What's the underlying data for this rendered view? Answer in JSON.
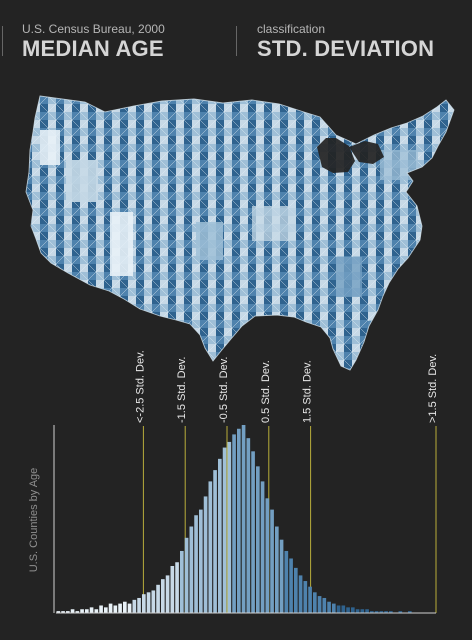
{
  "header": {
    "left_subtitle": "U.S. Census Bureau, 2000",
    "left_title": "MEDIAN AGE",
    "right_subtitle": "classification",
    "right_title": "STD. DEVIATION"
  },
  "colors": {
    "background": "#232323",
    "accent_lines": "#b8ad3a",
    "axis": "#d0d0d0",
    "blue_shades": [
      "#e8f1f7",
      "#c7d9e7",
      "#9fbfd7",
      "#739fc2",
      "#4e82ad",
      "#2f638f"
    ]
  },
  "chart_data": {
    "type": "bar",
    "ylabel": "U.S. Counties by Age",
    "xlim": [
      0,
      100
    ],
    "ylim": [
      0,
      100
    ],
    "thresholds": [
      {
        "label": "<-2.5 Std. Dev.",
        "x": 23
      },
      {
        "label": "-1.5 Std. Dev.",
        "x": 34
      },
      {
        "label": "-0.5 Std. Dev.",
        "x": 45
      },
      {
        "label": "0.5 Std. Dev.",
        "x": 56
      },
      {
        "label": "1.5 Std. Dev.",
        "x": 67
      },
      {
        "label": ">1.5 Std. Dev.",
        "x": 100
      }
    ],
    "values": [
      1,
      1,
      1,
      2,
      1,
      2,
      2,
      3,
      2,
      4,
      3,
      5,
      4,
      5,
      6,
      5,
      7,
      8,
      10,
      11,
      12,
      15,
      18,
      20,
      25,
      27,
      33,
      40,
      46,
      52,
      55,
      62,
      70,
      76,
      82,
      88,
      91,
      95,
      98,
      100,
      93,
      86,
      78,
      70,
      61,
      55,
      46,
      39,
      33,
      29,
      24,
      20,
      17,
      14,
      11,
      9,
      8,
      6,
      5,
      4,
      4,
      3,
      3,
      2,
      2,
      2,
      1,
      1,
      1,
      1,
      1,
      0,
      1,
      0,
      1,
      0,
      0,
      0,
      0,
      0
    ]
  }
}
